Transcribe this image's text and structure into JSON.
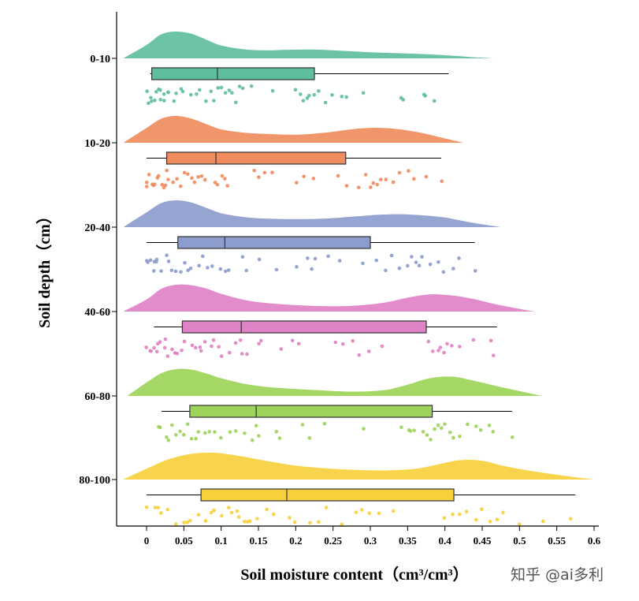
{
  "chart_data": {
    "type": "raincloud",
    "orientation": "horizontal",
    "title": "",
    "xlabel": "Soil moisture content（cm³/cm³）",
    "ylabel": "Soil depth（cm）",
    "xlim": [
      -0.04,
      0.6
    ],
    "xticks": [
      0,
      0.05,
      0.1,
      0.15,
      0.2,
      0.25,
      0.3,
      0.35,
      0.4,
      0.45,
      0.5,
      0.55,
      0.6
    ],
    "xtick_labels": [
      "0",
      "0.05",
      "0.1",
      "0.15",
      "0.2",
      "0.25",
      "0.3",
      "0.35",
      "0.4",
      "0.45",
      "0.5",
      "0.55",
      "0.6"
    ],
    "categories": [
      "0-10",
      "10-20",
      "20-40",
      "40-60",
      "60-80",
      "80-100"
    ],
    "series": [
      {
        "name": "0-10",
        "color": "#5fbf9c",
        "box": {
          "whisker_low": 0.005,
          "q1": 0.007,
          "median": 0.095,
          "q3": 0.225,
          "whisker_high": 0.405
        },
        "density": {
          "x": [
            -0.03,
            0.0,
            0.02,
            0.04,
            0.06,
            0.08,
            0.1,
            0.13,
            0.16,
            0.19,
            0.22,
            0.25,
            0.29,
            0.33,
            0.37,
            0.41,
            0.44,
            0.465
          ],
          "y": [
            0.02,
            0.5,
            0.9,
            1.0,
            0.92,
            0.7,
            0.48,
            0.34,
            0.3,
            0.32,
            0.33,
            0.3,
            0.24,
            0.2,
            0.16,
            0.1,
            0.04,
            0.0
          ]
        },
        "points": [
          0.0,
          0.002,
          0.005,
          0.008,
          0.01,
          0.012,
          0.015,
          0.018,
          0.02,
          0.022,
          0.025,
          0.028,
          0.03,
          0.035,
          0.04,
          0.045,
          0.05,
          0.06,
          0.065,
          0.07,
          0.08,
          0.085,
          0.09,
          0.095,
          0.1,
          0.105,
          0.11,
          0.115,
          0.12,
          0.125,
          0.13,
          0.14,
          0.17,
          0.2,
          0.205,
          0.21,
          0.215,
          0.22,
          0.225,
          0.23,
          0.24,
          0.25,
          0.26,
          0.27,
          0.29,
          0.34,
          0.345,
          0.37,
          0.375,
          0.385
        ]
      },
      {
        "name": "10-20",
        "color": "#f08c5e",
        "box": {
          "whisker_low": 0.0,
          "q1": 0.027,
          "median": 0.093,
          "q3": 0.267,
          "whisker_high": 0.395
        },
        "density": {
          "x": [
            -0.03,
            0.0,
            0.02,
            0.04,
            0.06,
            0.08,
            0.1,
            0.13,
            0.16,
            0.2,
            0.24,
            0.28,
            0.31,
            0.34,
            0.37,
            0.4,
            0.425
          ],
          "y": [
            0.02,
            0.55,
            0.9,
            1.0,
            0.9,
            0.7,
            0.5,
            0.38,
            0.33,
            0.3,
            0.38,
            0.52,
            0.56,
            0.5,
            0.36,
            0.16,
            0.0
          ]
        },
        "points": [
          0.0,
          0.002,
          0.005,
          0.008,
          0.01,
          0.012,
          0.015,
          0.018,
          0.02,
          0.022,
          0.025,
          0.028,
          0.03,
          0.035,
          0.04,
          0.045,
          0.05,
          0.055,
          0.06,
          0.065,
          0.07,
          0.075,
          0.08,
          0.09,
          0.095,
          0.1,
          0.105,
          0.11,
          0.145,
          0.15,
          0.16,
          0.17,
          0.2,
          0.21,
          0.225,
          0.255,
          0.27,
          0.285,
          0.295,
          0.3,
          0.305,
          0.31,
          0.315,
          0.32,
          0.33,
          0.34,
          0.35,
          0.36,
          0.375,
          0.395
        ]
      },
      {
        "name": "20-40",
        "color": "#8c9ccc",
        "box": {
          "whisker_low": 0.0,
          "q1": 0.042,
          "median": 0.105,
          "q3": 0.3,
          "whisker_high": 0.44
        },
        "density": {
          "x": [
            -0.03,
            0.0,
            0.02,
            0.04,
            0.06,
            0.08,
            0.1,
            0.13,
            0.16,
            0.2,
            0.24,
            0.28,
            0.31,
            0.34,
            0.37,
            0.4,
            0.43,
            0.475
          ],
          "y": [
            0.02,
            0.55,
            0.9,
            1.0,
            0.92,
            0.72,
            0.52,
            0.38,
            0.32,
            0.3,
            0.32,
            0.4,
            0.46,
            0.48,
            0.44,
            0.36,
            0.2,
            0.0
          ]
        },
        "points": [
          0.0,
          0.002,
          0.005,
          0.008,
          0.01,
          0.012,
          0.015,
          0.02,
          0.025,
          0.03,
          0.035,
          0.04,
          0.045,
          0.05,
          0.055,
          0.06,
          0.07,
          0.075,
          0.08,
          0.09,
          0.1,
          0.105,
          0.11,
          0.13,
          0.135,
          0.15,
          0.175,
          0.2,
          0.215,
          0.22,
          0.225,
          0.245,
          0.26,
          0.29,
          0.31,
          0.32,
          0.33,
          0.34,
          0.35,
          0.355,
          0.36,
          0.365,
          0.37,
          0.38,
          0.39,
          0.4,
          0.41,
          0.42,
          0.44
        ]
      },
      {
        "name": "40-60",
        "color": "#e082c6",
        "box": {
          "whisker_low": 0.01,
          "q1": 0.048,
          "median": 0.127,
          "q3": 0.375,
          "whisker_high": 0.47
        },
        "density": {
          "x": [
            -0.03,
            0.0,
            0.02,
            0.04,
            0.06,
            0.08,
            0.1,
            0.13,
            0.16,
            0.2,
            0.24,
            0.28,
            0.32,
            0.35,
            0.38,
            0.41,
            0.44,
            0.47,
            0.52
          ],
          "y": [
            0.02,
            0.45,
            0.85,
            1.0,
            0.98,
            0.86,
            0.66,
            0.44,
            0.32,
            0.24,
            0.2,
            0.22,
            0.34,
            0.52,
            0.64,
            0.6,
            0.46,
            0.26,
            0.0
          ]
        },
        "points": [
          0.0,
          0.003,
          0.006,
          0.01,
          0.013,
          0.016,
          0.02,
          0.023,
          0.026,
          0.03,
          0.033,
          0.036,
          0.04,
          0.045,
          0.05,
          0.06,
          0.065,
          0.07,
          0.075,
          0.08,
          0.085,
          0.09,
          0.095,
          0.1,
          0.11,
          0.12,
          0.125,
          0.13,
          0.135,
          0.15,
          0.155,
          0.18,
          0.195,
          0.205,
          0.255,
          0.265,
          0.275,
          0.285,
          0.3,
          0.315,
          0.38,
          0.385,
          0.39,
          0.395,
          0.4,
          0.405,
          0.41,
          0.42,
          0.44,
          0.46,
          0.465
        ]
      },
      {
        "name": "60-80",
        "color": "#9dd35a",
        "box": {
          "whisker_low": 0.02,
          "q1": 0.058,
          "median": 0.147,
          "q3": 0.383,
          "whisker_high": 0.49
        },
        "density": {
          "x": [
            -0.025,
            0.0,
            0.02,
            0.04,
            0.06,
            0.08,
            0.1,
            0.13,
            0.16,
            0.2,
            0.24,
            0.28,
            0.32,
            0.35,
            0.38,
            0.41,
            0.44,
            0.48,
            0.53
          ],
          "y": [
            0.02,
            0.5,
            0.85,
            1.0,
            0.98,
            0.84,
            0.66,
            0.46,
            0.34,
            0.26,
            0.2,
            0.16,
            0.22,
            0.42,
            0.66,
            0.72,
            0.56,
            0.3,
            0.0
          ]
        },
        "points": [
          0.015,
          0.02,
          0.025,
          0.03,
          0.035,
          0.04,
          0.045,
          0.05,
          0.055,
          0.06,
          0.065,
          0.07,
          0.08,
          0.085,
          0.09,
          0.1,
          0.11,
          0.12,
          0.13,
          0.14,
          0.145,
          0.15,
          0.175,
          0.18,
          0.21,
          0.22,
          0.24,
          0.29,
          0.34,
          0.35,
          0.355,
          0.36,
          0.37,
          0.375,
          0.38,
          0.385,
          0.39,
          0.395,
          0.4,
          0.405,
          0.41,
          0.42,
          0.43,
          0.44,
          0.45,
          0.46,
          0.465,
          0.49
        ]
      },
      {
        "name": "80-100",
        "color": "#f7d03c",
        "box": {
          "whisker_low": 0.0,
          "q1": 0.073,
          "median": 0.188,
          "q3": 0.412,
          "whisker_high": 0.575
        },
        "density": {
          "x": [
            -0.03,
            0.0,
            0.03,
            0.06,
            0.09,
            0.12,
            0.16,
            0.2,
            0.24,
            0.28,
            0.32,
            0.36,
            0.39,
            0.42,
            0.45,
            0.48,
            0.52,
            0.56,
            0.6
          ],
          "y": [
            0.02,
            0.4,
            0.76,
            0.96,
            1.0,
            0.9,
            0.7,
            0.52,
            0.42,
            0.36,
            0.34,
            0.4,
            0.56,
            0.72,
            0.7,
            0.5,
            0.3,
            0.14,
            0.0
          ]
        },
        "points": [
          0.0,
          0.01,
          0.015,
          0.02,
          0.03,
          0.04,
          0.05,
          0.055,
          0.06,
          0.07,
          0.08,
          0.085,
          0.09,
          0.1,
          0.11,
          0.115,
          0.12,
          0.125,
          0.13,
          0.135,
          0.14,
          0.15,
          0.16,
          0.17,
          0.19,
          0.2,
          0.22,
          0.23,
          0.24,
          0.26,
          0.28,
          0.29,
          0.3,
          0.31,
          0.33,
          0.4,
          0.41,
          0.42,
          0.43,
          0.44,
          0.45,
          0.46,
          0.47,
          0.48,
          0.5,
          0.53,
          0.57
        ]
      }
    ]
  },
  "watermark": "知乎 @ai多利"
}
